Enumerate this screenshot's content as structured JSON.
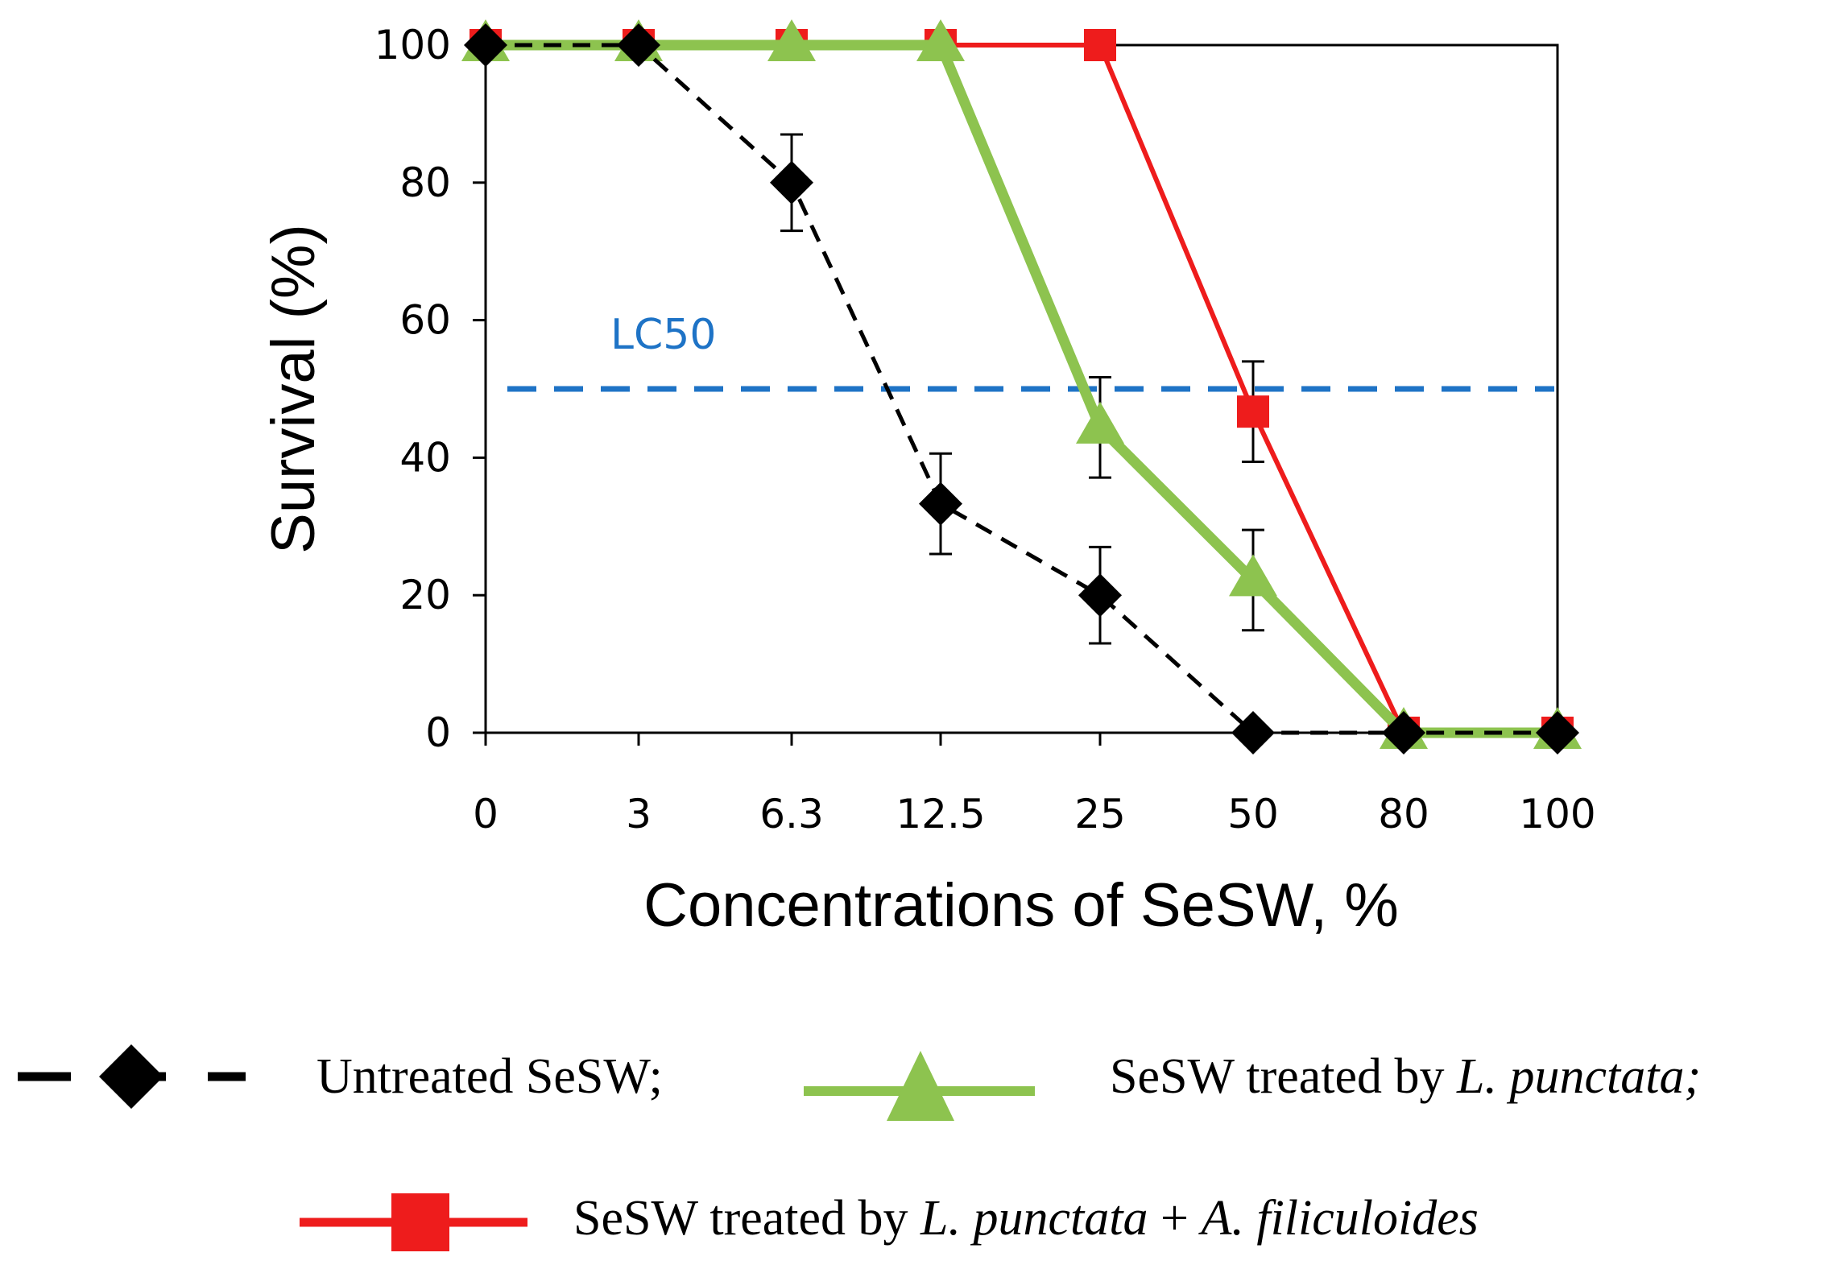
{
  "chart_data": {
    "type": "line",
    "title": "",
    "xlabel": "Concentrations of SeSW, %",
    "ylabel": "Survival (%)",
    "categories": [
      "0",
      "3",
      "6.3",
      "12.5",
      "25",
      "50",
      "80",
      "100"
    ],
    "ylim": [
      0,
      100
    ],
    "yticks": [
      "0",
      "20",
      "40",
      "60",
      "80",
      "100"
    ],
    "grid": false,
    "reference_line": {
      "label": "LC50",
      "value": 50,
      "color": "#1e73c6"
    },
    "series": [
      {
        "name": "Untreated SeSW;",
        "color": "#000000",
        "marker": "diamond",
        "line_style": "dashed",
        "values": [
          100,
          100,
          80,
          33.3,
          20,
          0,
          0,
          0
        ],
        "errors": [
          0,
          0,
          7,
          7.3,
          7,
          0,
          0,
          0
        ]
      },
      {
        "name": "SeSW treated by L. punctata;",
        "color": "#8dc34f",
        "marker": "triangle",
        "line_style": "solid",
        "values": [
          100,
          100,
          100,
          100,
          44.4,
          22.2,
          0,
          0
        ],
        "errors": [
          0,
          0,
          0,
          0,
          7.3,
          7.3,
          0,
          0
        ]
      },
      {
        "name": "SeSW treated by L. punctata + A. filiculoides",
        "color": "#ee1c1c",
        "marker": "square",
        "line_style": "solid",
        "values": [
          100,
          100,
          100,
          100,
          100,
          46.7,
          0,
          0
        ],
        "errors": [
          0,
          0,
          0,
          0,
          0,
          7.3,
          0,
          0
        ]
      }
    ],
    "legend": {
      "position": "bottom",
      "entries": [
        {
          "prefix": "Untreated SeSW;",
          "italic": "",
          "suffix": ""
        },
        {
          "prefix": "SeSW treated by ",
          "italic": "L. punctata;",
          "suffix": ""
        },
        {
          "prefix": "SeSW treated by ",
          "italic": "L. punctata",
          "suffix": " + ",
          "italic2": "A. filiculoides"
        }
      ]
    }
  }
}
